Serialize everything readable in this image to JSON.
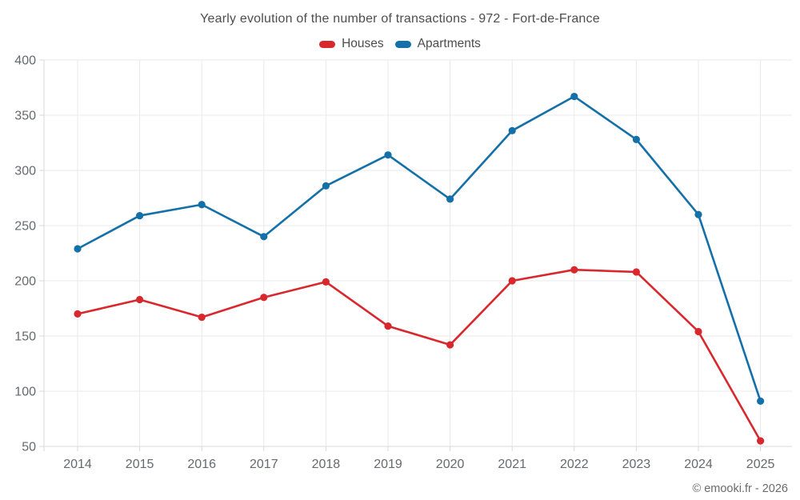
{
  "header": {
    "title": "Yearly evolution of the number of transactions - 972 - Fort-de-France"
  },
  "footer": {
    "credit": "© emooki.fr - 2026"
  },
  "chart_data": {
    "type": "line",
    "title": "Yearly evolution of the number of transactions - 972 - Fort-de-France",
    "categories": [
      "2014",
      "2015",
      "2016",
      "2017",
      "2018",
      "2019",
      "2020",
      "2021",
      "2022",
      "2023",
      "2024",
      "2025"
    ],
    "series": [
      {
        "name": "Houses",
        "color": "#d9282d",
        "values": [
          170,
          183,
          167,
          185,
          199,
          159,
          142,
          200,
          210,
          208,
          154,
          55
        ]
      },
      {
        "name": "Apartments",
        "color": "#1470a8",
        "values": [
          229,
          259,
          269,
          240,
          286,
          314,
          274,
          336,
          367,
          328,
          260,
          91
        ]
      }
    ],
    "legend": [
      "Houses",
      "Apartments"
    ],
    "legend_position": "top",
    "xlabel": "",
    "ylabel": "",
    "ylim": [
      50,
      400
    ],
    "ytick_step": 50,
    "grid": true,
    "grid_color": "#e9e9e9",
    "axis_color": "#d9d9d9",
    "tick_label_color": "#66696d"
  }
}
